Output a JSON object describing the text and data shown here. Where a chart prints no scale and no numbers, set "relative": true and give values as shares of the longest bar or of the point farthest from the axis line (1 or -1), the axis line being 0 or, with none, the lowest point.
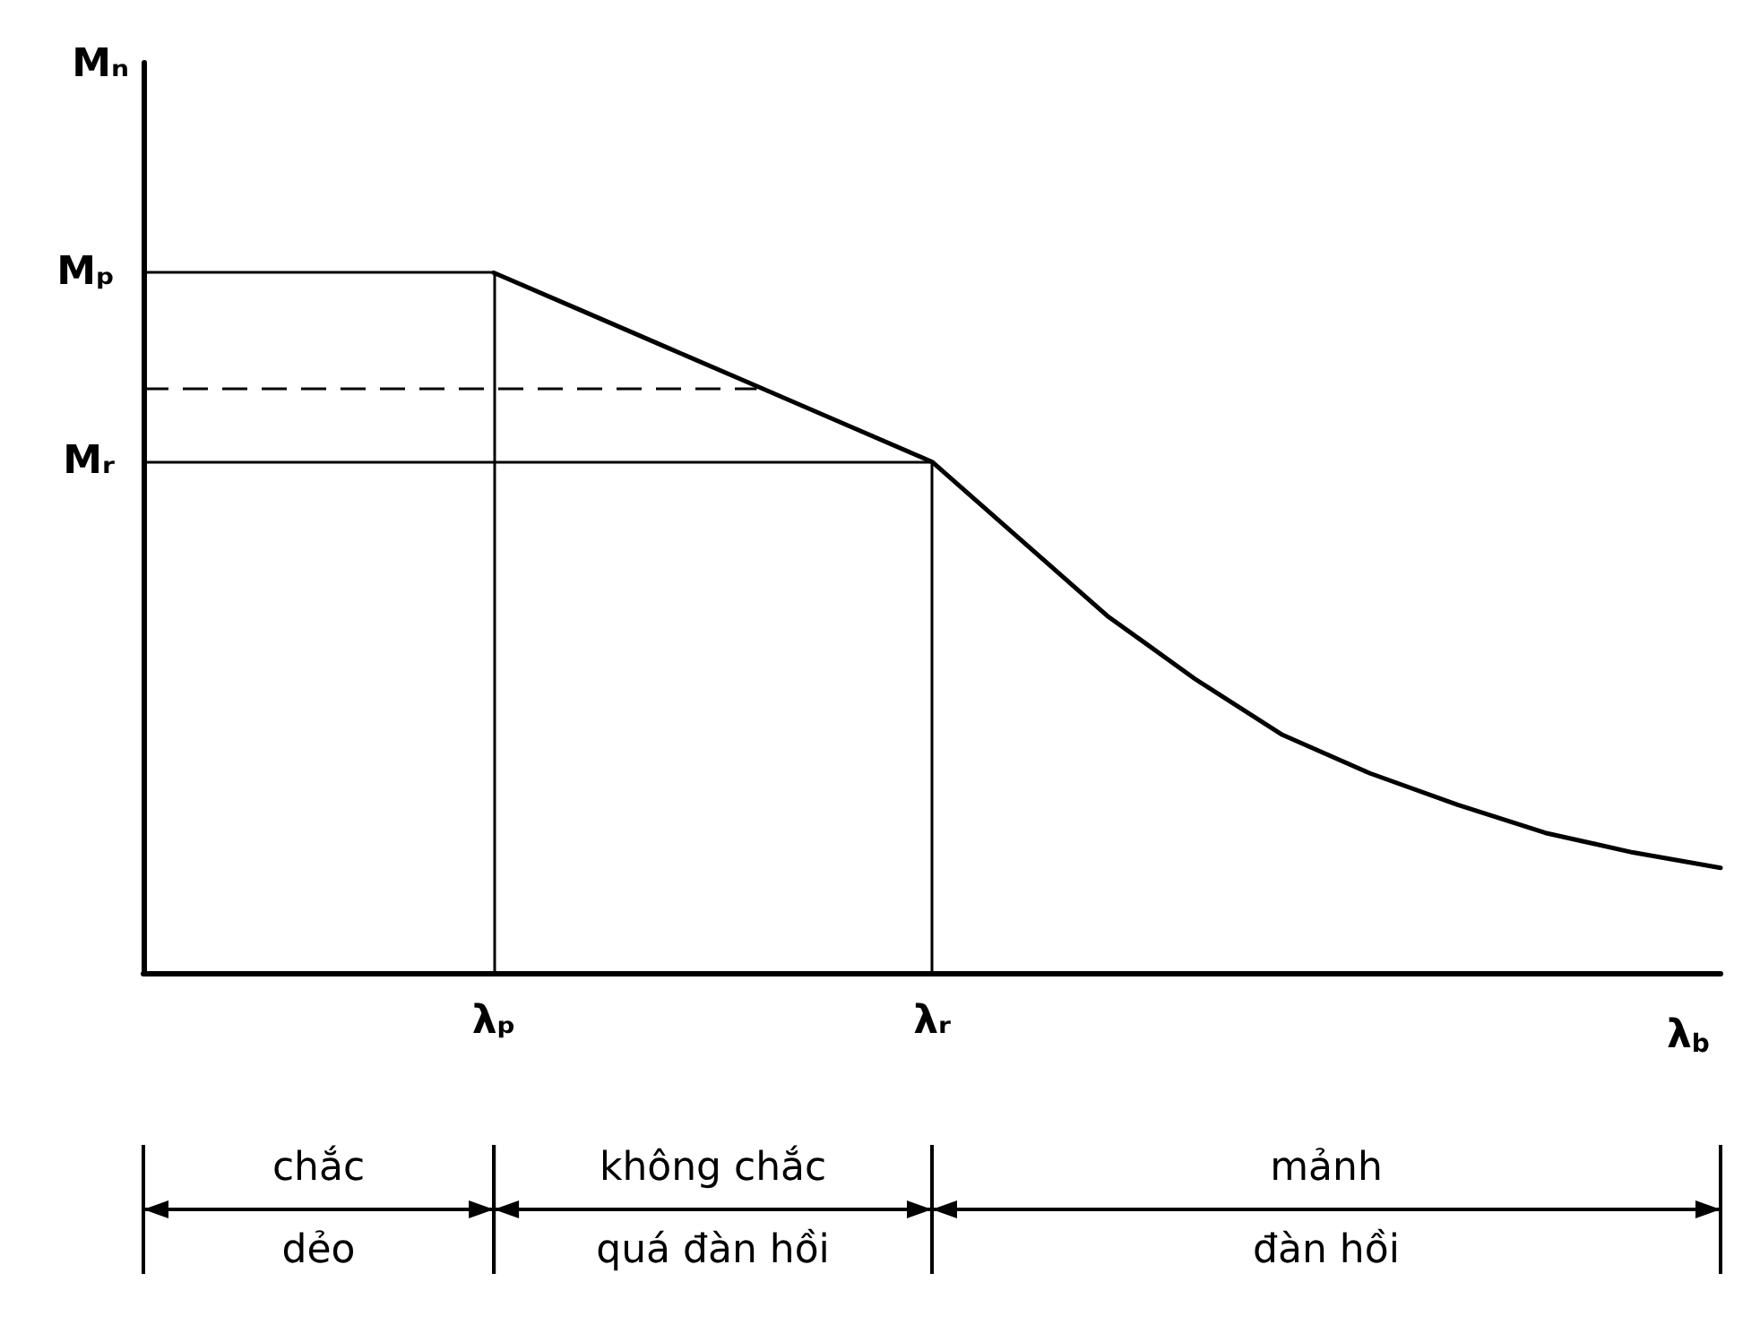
{
  "chart_data": {
    "type": "line",
    "relative": true,
    "xlabel": "λ$_{b}$",
    "ylabel": "Mₙ",
    "color": "#000000",
    "marker": "none",
    "line_style": "solid",
    "grid": false,
    "categories": [
      null,
      null,
      null,
      null,
      "λₚ",
      null,
      null,
      null,
      null,
      "λᵣ",
      null,
      null,
      null,
      null,
      null,
      null,
      null,
      null,
      null
    ],
    "values": [
      null,
      null,
      null,
      null,
      1,
      0.946,
      0.892,
      0.838,
      0.784,
      0.73,
      0.62,
      0.51,
      0.42,
      0.34,
      0.285,
      0.24,
      0.2,
      0.172,
      0.15
    ],
    "ref_lines": [
      {
        "axis": "y",
        "value": 1,
        "label": "Mₚ",
        "line_style": "solid"
      },
      {
        "axis": "y",
        "value": 0.835,
        "line_style": "dashed"
      },
      {
        "axis": "y",
        "value": 0.73,
        "label": "Mᵣ",
        "line_style": "solid"
      },
      {
        "axis": "x",
        "value": "λₚ",
        "line_style": "solid"
      },
      {
        "axis": "x",
        "value": "λᵣ",
        "line_style": "solid"
      }
    ],
    "annotations": [
      "chắc",
      "dẻo",
      "không chắc",
      "quá đàn hồi",
      "mảnh",
      "đàn hồi"
    ]
  }
}
